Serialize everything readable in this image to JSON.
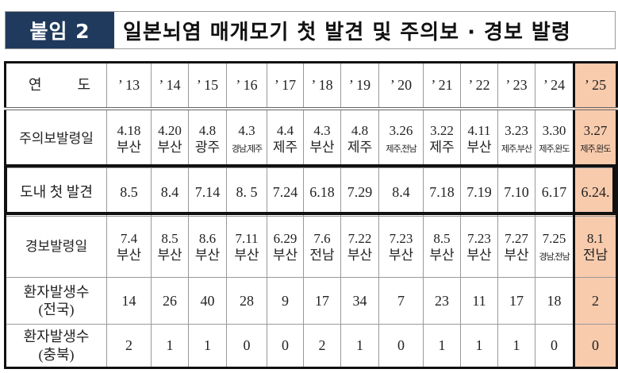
{
  "banner": {
    "badge": "붙임 2",
    "title": "일본뇌염 매개모기 첫 발견 및 주의보 · 경보 발령"
  },
  "highlight_color": "#f8cbad",
  "table": {
    "row_labels": {
      "year_a": "연",
      "year_b": "도",
      "advisory": "주의보발령일",
      "first_found": "도내 첫 발견",
      "warning": "경보발령일",
      "patients_national_a": "환자발생수",
      "patients_national_b": "(전국)",
      "patients_chungbuk_a": "환자발생수",
      "patients_chungbuk_b": "(충북)"
    },
    "columns": [
      {
        "year": "’ 13",
        "adv_date": "4.18",
        "adv_region": "부산",
        "first": "8.5",
        "warn_date": "7.4",
        "warn_region": "부산",
        "national": "14",
        "chungbuk": "2"
      },
      {
        "year": "’ 14",
        "adv_date": "4.20",
        "adv_region": "부산",
        "first": "8.4",
        "warn_date": "8.5",
        "warn_region": "부산",
        "national": "26",
        "chungbuk": "1"
      },
      {
        "year": "’ 15",
        "adv_date": "4.8",
        "adv_region": "광주",
        "first": "7.14",
        "warn_date": "8.6",
        "warn_region": "부산",
        "national": "40",
        "chungbuk": "1"
      },
      {
        "year": "’ 16",
        "adv_date": "4.3",
        "adv_region": "경남,제주",
        "first": "8. 5",
        "warn_date": "7.11",
        "warn_region": "부산",
        "national": "28",
        "chungbuk": "0"
      },
      {
        "year": "’ 17",
        "adv_date": "4.4",
        "adv_region": "제주",
        "first": "7.24",
        "warn_date": "6.29",
        "warn_region": "부산",
        "national": "9",
        "chungbuk": "0"
      },
      {
        "year": "’ 18",
        "adv_date": "4.3",
        "adv_region": "부산",
        "first": "6.18",
        "warn_date": "7.6",
        "warn_region": "전남",
        "national": "17",
        "chungbuk": "2"
      },
      {
        "year": "’ 19",
        "adv_date": "4.8",
        "adv_region": "제주",
        "first": "7.29",
        "warn_date": "7.22",
        "warn_region": "부산",
        "national": "34",
        "chungbuk": "1"
      },
      {
        "year": "’ 20",
        "adv_date": "3.26",
        "adv_region": "제주,전남",
        "first": "8.4",
        "warn_date": "7.23",
        "warn_region": "부산",
        "national": "7",
        "chungbuk": "0"
      },
      {
        "year": "’ 21",
        "adv_date": "3.22",
        "adv_region": "제주",
        "first": "7.18",
        "warn_date": "8.5",
        "warn_region": "부산",
        "national": "23",
        "chungbuk": "1"
      },
      {
        "year": "’ 22",
        "adv_date": "4.11",
        "adv_region": "부산",
        "first": "7.19",
        "warn_date": "7.23",
        "warn_region": "부산",
        "national": "11",
        "chungbuk": "1"
      },
      {
        "year": "’ 23",
        "adv_date": "3.23",
        "adv_region": "제주,부산",
        "first": "7.10",
        "warn_date": "7.27",
        "warn_region": "부산",
        "national": "17",
        "chungbuk": "1"
      },
      {
        "year": "’ 24",
        "adv_date": "3.30",
        "adv_region": "제주,완도",
        "first": "6.17",
        "warn_date": "7.25",
        "warn_region": "경남,전남",
        "national": "18",
        "chungbuk": "0"
      },
      {
        "year": "’ 25",
        "adv_date": "3.27",
        "adv_region": "제주,완도",
        "first": "6.24.",
        "warn_date": "8.1",
        "warn_region": "전남",
        "national": "2",
        "chungbuk": "0"
      }
    ]
  }
}
